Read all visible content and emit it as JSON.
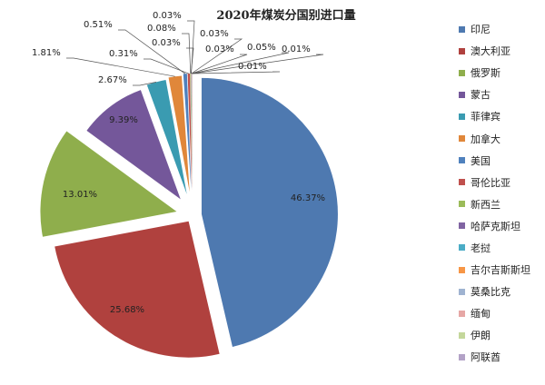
{
  "chart_data": {
    "type": "pie",
    "title": "2020年煤炭分国别进口量",
    "legend_position": "right",
    "categories": [
      "印尼",
      "澳大利亚",
      "俄罗斯",
      "蒙古",
      "菲律宾",
      "加拿大",
      "美国",
      "哥伦比亚",
      "新西兰",
      "哈萨克斯坦",
      "老挝",
      "吉尔吉斯斯坦",
      "莫桑比克",
      "缅甸",
      "伊朗",
      "阿联酋"
    ],
    "values": [
      46.37,
      25.68,
      13.01,
      9.39,
      2.67,
      1.81,
      0.51,
      0.31,
      0.08,
      0.03,
      0.03,
      0.03,
      0.03,
      0.05,
      0.01,
      0.01
    ],
    "value_labels": [
      "46.37%",
      "25.68%",
      "13.01%",
      "9.39%",
      "2.67%",
      "1.81%",
      "0.51%",
      "0.31%",
      "0.08%",
      "0.03%",
      "0.03%",
      "0.03%",
      "0.03%",
      "0.05%",
      "0.01%",
      "0.01%"
    ],
    "colors": [
      "#4e79b0",
      "#b0413e",
      "#8fae4c",
      "#74579a",
      "#3a9bb1",
      "#e0873a",
      "#4f81bd",
      "#c0504d",
      "#9bbb59",
      "#8064a2",
      "#4bacc6",
      "#f79646",
      "#9fb3d1",
      "#e6a7a5",
      "#c4d79b",
      "#b3a2c7"
    ]
  }
}
